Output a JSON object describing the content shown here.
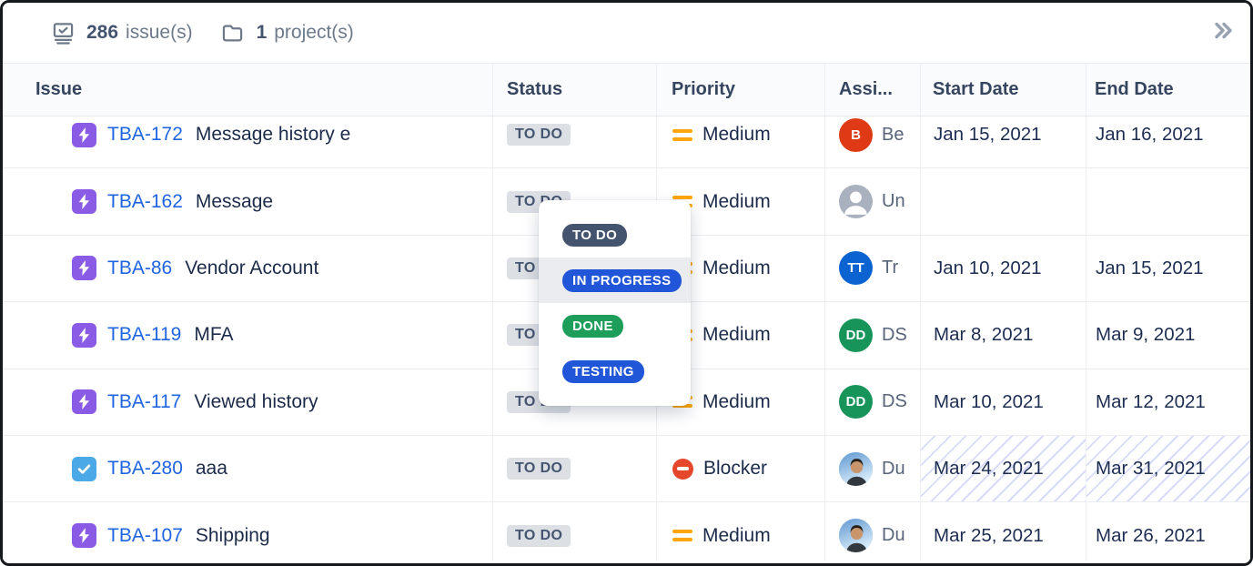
{
  "toolbar": {
    "issues_count": "286",
    "issues_label": "issue(s)",
    "projects_count": "1",
    "projects_label": "project(s)"
  },
  "table": {
    "columns": [
      "Issue",
      "Status",
      "Priority",
      "Assi...",
      "Start Date",
      "End Date"
    ],
    "rows": [
      {
        "key": "TBA-172",
        "summary": "Message history e",
        "type": "bolt",
        "status": "TO DO",
        "priority": "Medium",
        "priority_icon": "medium",
        "avatar": {
          "kind": "initials",
          "text": "B",
          "color": "#DE3A16"
        },
        "assignee": "Be",
        "start": "Jan 15, 2021",
        "end": "Jan 16, 2021",
        "hatched": false
      },
      {
        "key": "TBA-162",
        "summary": "Message",
        "type": "bolt",
        "status": "TO DO",
        "priority": "Medium",
        "priority_icon": "medium",
        "avatar": {
          "kind": "unassigned",
          "text": "",
          "color": "#A9B1BE"
        },
        "assignee": "Un",
        "start": "",
        "end": "",
        "hatched": false
      },
      {
        "key": "TBA-86",
        "summary": "Vendor Account",
        "type": "bolt",
        "status": "TO DO",
        "priority": "Medium",
        "priority_icon": "medium",
        "avatar": {
          "kind": "initials",
          "text": "TT",
          "color": "#0B63D1"
        },
        "assignee": "Tr",
        "start": "Jan 10, 2021",
        "end": "Jan 15, 2021",
        "hatched": false
      },
      {
        "key": "TBA-119",
        "summary": "MFA",
        "type": "bolt",
        "status": "TO DO",
        "priority": "Medium",
        "priority_icon": "medium",
        "avatar": {
          "kind": "initials",
          "text": "DD",
          "color": "#17945A"
        },
        "assignee": "DS",
        "start": "Mar 8, 2021",
        "end": "Mar 9, 2021",
        "hatched": false
      },
      {
        "key": "TBA-117",
        "summary": "Viewed history",
        "type": "bolt",
        "status": "TO DO",
        "priority": "Medium",
        "priority_icon": "medium",
        "avatar": {
          "kind": "initials",
          "text": "DD",
          "color": "#17945A"
        },
        "assignee": "DS",
        "start": "Mar 10, 2021",
        "end": "Mar 12, 2021",
        "hatched": false
      },
      {
        "key": "TBA-280",
        "summary": "aaa",
        "type": "check",
        "status": "TO DO",
        "priority": "Blocker",
        "priority_icon": "blocker",
        "avatar": {
          "kind": "photo",
          "text": "",
          "color": "#6FA8DC"
        },
        "assignee": "Du",
        "start": "Mar 24, 2021",
        "end": "Mar 31, 2021",
        "hatched": true
      },
      {
        "key": "TBA-107",
        "summary": "Shipping",
        "type": "bolt",
        "status": "TO DO",
        "priority": "Medium",
        "priority_icon": "medium",
        "avatar": {
          "kind": "photo",
          "text": "",
          "color": "#6FA8DC"
        },
        "assignee": "Du",
        "start": "Mar 25, 2021",
        "end": "Mar 26, 2021",
        "hatched": false
      }
    ]
  },
  "dropdown": {
    "options": [
      {
        "label": "TO DO",
        "color": "#44546F",
        "hover": false
      },
      {
        "label": "IN PROGRESS",
        "color": "#2156D8",
        "hover": true
      },
      {
        "label": "DONE",
        "color": "#1E9E5B",
        "hover": false
      },
      {
        "label": "TESTING",
        "color": "#2156D8",
        "hover": false
      }
    ]
  },
  "colors": {
    "link": "#2065E0",
    "badge_bg": "#DCDFE4",
    "badge_text": "#44546F",
    "medium": "#FFA60E",
    "blocker": "#E5472D",
    "bolt": "#8A5BE5",
    "check": "#4CA9E8",
    "hatch": "rgba(124,136,236,0.30)"
  }
}
